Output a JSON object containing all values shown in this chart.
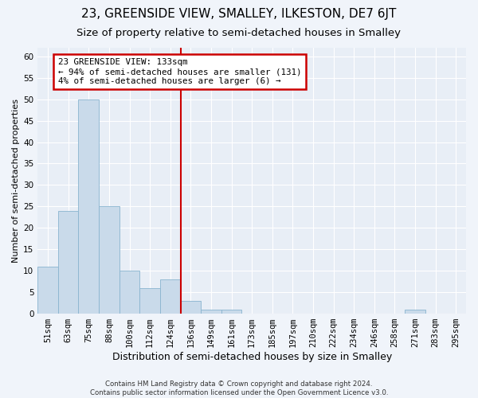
{
  "title": "23, GREENSIDE VIEW, SMALLEY, ILKESTON, DE7 6JT",
  "subtitle": "Size of property relative to semi-detached houses in Smalley",
  "xlabel": "Distribution of semi-detached houses by size in Smalley",
  "ylabel": "Number of semi-detached properties",
  "bar_labels": [
    "51sqm",
    "63sqm",
    "75sqm",
    "88sqm",
    "100sqm",
    "112sqm",
    "124sqm",
    "136sqm",
    "149sqm",
    "161sqm",
    "173sqm",
    "185sqm",
    "197sqm",
    "210sqm",
    "222sqm",
    "234sqm",
    "246sqm",
    "258sqm",
    "271sqm",
    "283sqm",
    "295sqm"
  ],
  "bar_values": [
    11,
    24,
    50,
    25,
    10,
    6,
    8,
    3,
    1,
    1,
    0,
    0,
    0,
    0,
    0,
    0,
    0,
    0,
    1,
    0,
    0
  ],
  "bar_color": "#c9daea",
  "bar_edge_color": "#89b4cf",
  "property_line_index": 7,
  "annotation_title": "23 GREENSIDE VIEW: 133sqm",
  "annotation_line1": "← 94% of semi-detached houses are smaller (131)",
  "annotation_line2": "4% of semi-detached houses are larger (6) →",
  "annotation_box_color": "#ffffff",
  "annotation_box_edge": "#cc0000",
  "vline_color": "#cc0000",
  "ylim": [
    0,
    62
  ],
  "yticks": [
    0,
    5,
    10,
    15,
    20,
    25,
    30,
    35,
    40,
    45,
    50,
    55,
    60
  ],
  "footer": "Contains HM Land Registry data © Crown copyright and database right 2024.\nContains public sector information licensed under the Open Government Licence v3.0.",
  "bg_color": "#f0f4fa",
  "plot_bg_color": "#e8eef6",
  "title_fontsize": 11,
  "subtitle_fontsize": 9.5,
  "tick_fontsize": 7.5,
  "ylabel_fontsize": 8,
  "xlabel_fontsize": 9
}
